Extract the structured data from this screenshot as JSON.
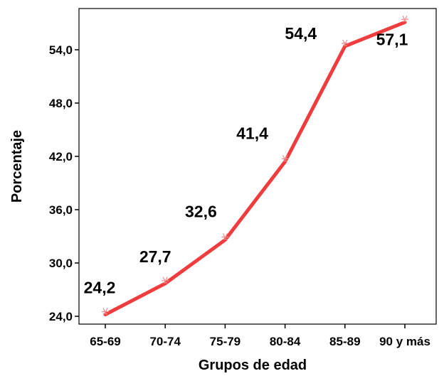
{
  "chart_data": {
    "type": "line",
    "xlabel": "Grupos de edad",
    "ylabel": "Porcentaje",
    "categories": [
      "65-69",
      "70-74",
      "75-79",
      "80-84",
      "85-89",
      "90 y más"
    ],
    "y_ticks": [
      "24,0",
      "30,0",
      "36,0",
      "42,0",
      "48,0",
      "54,0"
    ],
    "ylim": [
      23.5,
      58.2
    ],
    "series": [
      {
        "values": [
          24.2,
          27.7,
          32.6,
          41.4,
          54.4,
          57.1
        ],
        "labels": [
          "24,2",
          "27,7",
          "32,6",
          "41,4",
          "54,4",
          "57,1"
        ]
      }
    ],
    "line_color": "#f03c3c",
    "marker_color": "#f08a8a",
    "grid": false,
    "legend": "none"
  }
}
